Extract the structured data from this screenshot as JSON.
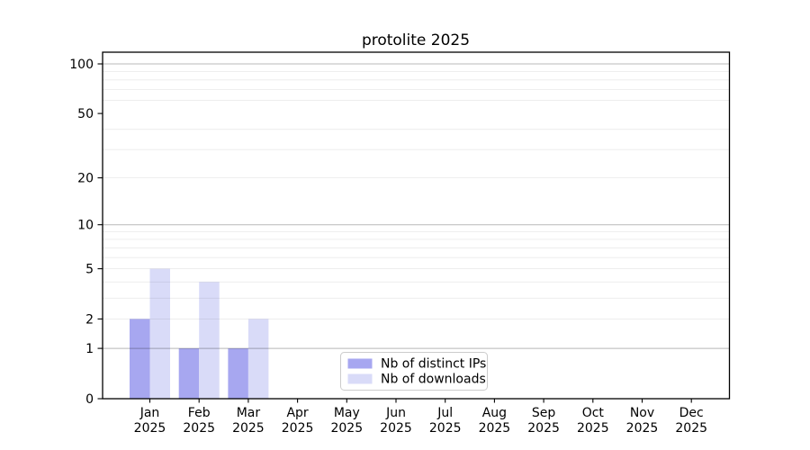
{
  "chart_data": {
    "type": "bar",
    "title": "protolite 2025",
    "categories": [
      "Jan",
      "Feb",
      "Mar",
      "Apr",
      "May",
      "Jun",
      "Jul",
      "Aug",
      "Sep",
      "Oct",
      "Nov",
      "Dec"
    ],
    "category_year": "2025",
    "series": [
      {
        "name": "Nb of distinct IPs",
        "color": "#a7a7f0",
        "values": [
          2,
          1,
          1,
          0,
          0,
          0,
          0,
          0,
          0,
          0,
          0,
          0
        ]
      },
      {
        "name": "Nb of downloads",
        "color": "#d9dbf8",
        "values": [
          5,
          4,
          2,
          0,
          0,
          0,
          0,
          0,
          0,
          0,
          0,
          0
        ]
      }
    ],
    "xlabel": "",
    "ylabel": "",
    "yscale": "log1p",
    "ylim": [
      0,
      100
    ],
    "y_ticks": [
      0,
      1,
      2,
      5,
      10,
      20,
      50,
      100
    ],
    "y_major_gridlines": [
      1,
      10,
      100
    ],
    "y_minor_gridlines": [
      2,
      3,
      4,
      5,
      6,
      7,
      8,
      9,
      20,
      30,
      40,
      60,
      70,
      80,
      90
    ],
    "grid": true,
    "legend": {
      "position": "lower center",
      "entries": [
        "Nb of distinct IPs",
        "Nb of downloads"
      ]
    }
  },
  "colors": {
    "bar_distinct_ips": "#a7a7f0",
    "bar_downloads": "#d9dbf8",
    "major_grid": "rgba(0,0,0,0.28)",
    "minor_grid": "rgba(0,0,0,0.08)",
    "axis": "#000000",
    "legend_border": "#cccccc",
    "background": "#ffffff"
  }
}
